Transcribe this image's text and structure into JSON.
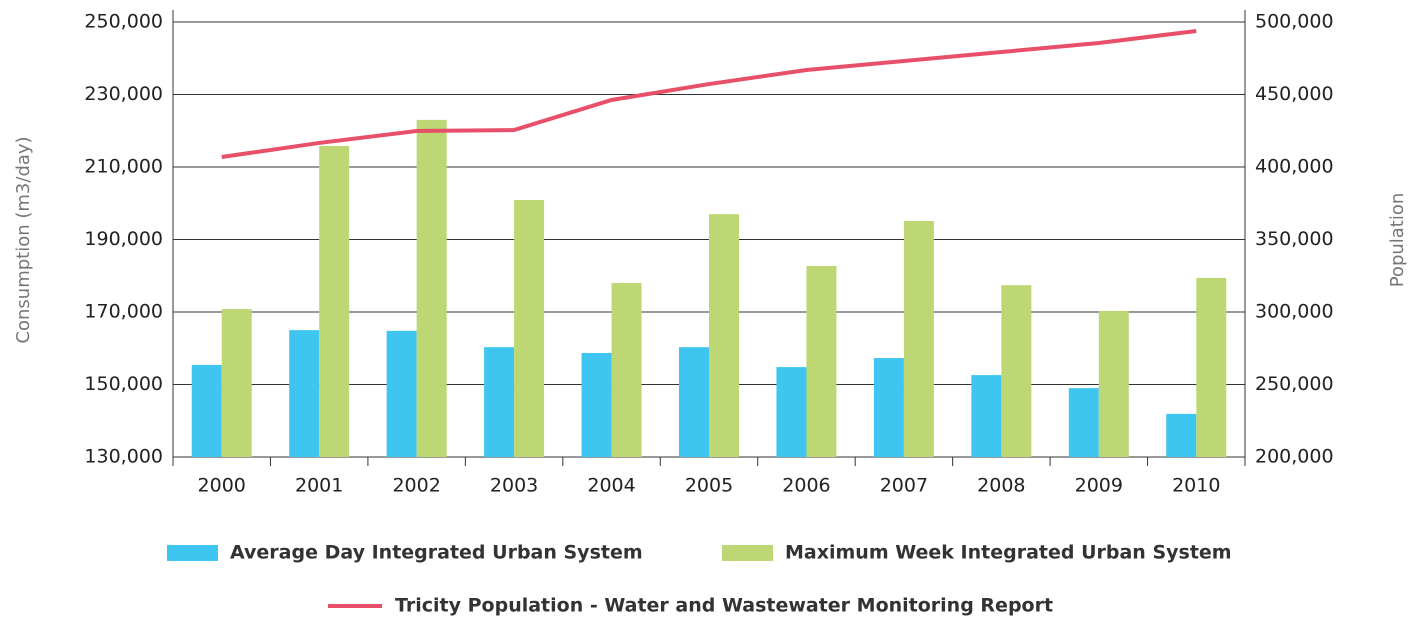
{
  "chart_data": {
    "type": "bar",
    "y_label": "Consumption (m3/day)",
    "y2_label": "Population",
    "categories": [
      "2000",
      "2001",
      "2002",
      "2003",
      "2004",
      "2005",
      "2006",
      "2007",
      "2008",
      "2009",
      "2010"
    ],
    "series": [
      {
        "name": "Average Day Integrated Urban System",
        "type": "bar",
        "color": "#3fc6f0",
        "values": [
          155400,
          165000,
          164800,
          160300,
          158700,
          160300,
          154800,
          157300,
          152600,
          149000,
          141900
        ]
      },
      {
        "name": "Maximum Week Integrated Urban System",
        "type": "bar",
        "color": "#bcd773",
        "values": [
          170800,
          215800,
          223000,
          200900,
          178000,
          197000,
          182700,
          195100,
          177400,
          170300,
          179400
        ]
      },
      {
        "name": "Tricity Population - Water and Wastewater Monitoring Report",
        "type": "line",
        "color": "#e8506a",
        "axis": "y2",
        "values": [
          406900,
          416600,
          424800,
          425500,
          446200,
          457200,
          466900,
          473100,
          479300,
          485500,
          493800
        ]
      }
    ],
    "ylim": [
      130000,
      250000
    ],
    "yticks": [
      {
        "value": 130000,
        "label": "130,000"
      },
      {
        "value": 150000,
        "label": "150,000"
      },
      {
        "value": 170000,
        "label": "170,000"
      },
      {
        "value": 190000,
        "label": "190,000"
      },
      {
        "value": 210000,
        "label": "210,000"
      },
      {
        "value": 230000,
        "label": "230,000"
      },
      {
        "value": 250000,
        "label": "250,000"
      }
    ],
    "y2lim": [
      200000,
      500000
    ],
    "y2ticks": [
      {
        "value": 200000,
        "label": "200,000"
      },
      {
        "value": 250000,
        "label": "250,000"
      },
      {
        "value": 300000,
        "label": "300,000"
      },
      {
        "value": 350000,
        "label": "350,000"
      },
      {
        "value": 400000,
        "label": "400,000"
      },
      {
        "value": 450000,
        "label": "450,000"
      },
      {
        "value": 500000,
        "label": "500,000"
      }
    ],
    "grid": true
  }
}
